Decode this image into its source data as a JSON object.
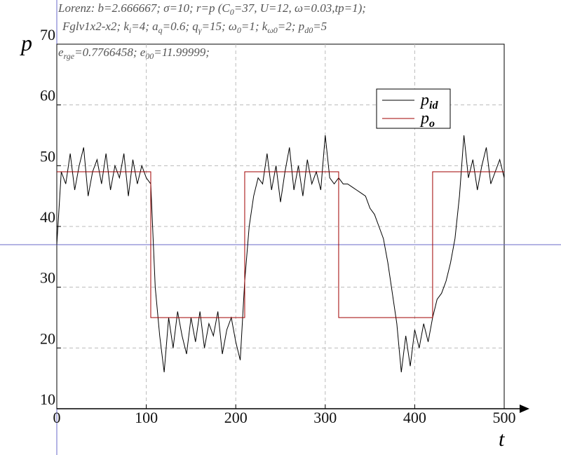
{
  "chart_data": {
    "type": "line",
    "annotations": [
      [
        "Lorenz: b=2.666667; σ=10; r=p (C",
        "0",
        "=37, U=12, ω=0.03,tp=1);"
      ],
      [
        "Fglv1x2-x2; k",
        "i",
        "=4; a",
        "q",
        "=0.6; q",
        "γ",
        "=15; ω",
        "0",
        "=1; k",
        "ω0",
        "=2; p",
        "d0",
        "=5"
      ],
      [
        "e",
        "rge",
        "=0.7766458; e",
        "00",
        "=11.99999;"
      ]
    ],
    "y_label": "p",
    "x_label": "t",
    "xlim": [
      0,
      500
    ],
    "ylim": [
      10,
      70
    ],
    "xticks": [
      0,
      100,
      200,
      300,
      400,
      500
    ],
    "yticks": [
      10,
      20,
      30,
      40,
      50,
      60,
      70
    ],
    "grid": true,
    "legend": "upper right",
    "reference_line": {
      "value": 37,
      "color": "#6a6ac8"
    },
    "series": [
      {
        "name": "p",
        "subscript": "id",
        "color": "#000000",
        "x": [
          0,
          5,
          10,
          15,
          20,
          25,
          30,
          35,
          40,
          45,
          50,
          55,
          60,
          65,
          70,
          75,
          80,
          85,
          90,
          95,
          100,
          105,
          110,
          115,
          120,
          125,
          130,
          135,
          140,
          145,
          150,
          155,
          160,
          165,
          170,
          175,
          180,
          185,
          190,
          195,
          200,
          205,
          210,
          215,
          220,
          225,
          230,
          235,
          240,
          245,
          250,
          255,
          260,
          265,
          270,
          275,
          280,
          285,
          290,
          295,
          300,
          305,
          310,
          315,
          320,
          325,
          330,
          335,
          340,
          345,
          350,
          355,
          360,
          365,
          370,
          375,
          380,
          385,
          390,
          395,
          400,
          405,
          410,
          415,
          420,
          425,
          430,
          435,
          440,
          445,
          450,
          455,
          460,
          465,
          470,
          475,
          480,
          485,
          490,
          495,
          500
        ],
        "values": [
          37,
          49,
          47,
          52,
          46,
          50,
          53,
          45,
          49,
          51,
          47,
          52,
          46,
          50,
          48,
          52,
          45,
          51,
          47,
          50,
          48,
          47,
          30,
          22,
          16,
          25,
          20,
          26,
          22,
          19,
          25,
          21,
          26,
          20,
          24,
          22,
          26,
          19,
          23,
          25,
          21,
          18,
          31,
          40,
          45,
          48,
          47,
          52,
          46,
          50,
          44,
          49,
          53,
          46,
          50,
          45,
          51,
          47,
          49,
          46,
          55,
          48,
          47,
          48,
          47,
          47,
          46.5,
          46,
          45.5,
          45,
          43,
          42,
          40,
          38,
          34,
          29,
          24,
          16,
          22,
          17,
          23,
          20,
          24,
          21,
          25,
          28,
          29,
          31,
          34,
          38,
          45,
          55,
          48,
          51,
          46,
          50,
          53,
          47,
          49,
          51,
          48
        ]
      },
      {
        "name": "p",
        "subscript": "o",
        "color": "#a00000",
        "x": [
          0,
          105,
          105,
          210,
          210,
          315,
          315,
          420,
          420,
          500
        ],
        "values": [
          49,
          49,
          25,
          25,
          49,
          49,
          25,
          25,
          49,
          49
        ]
      }
    ]
  }
}
